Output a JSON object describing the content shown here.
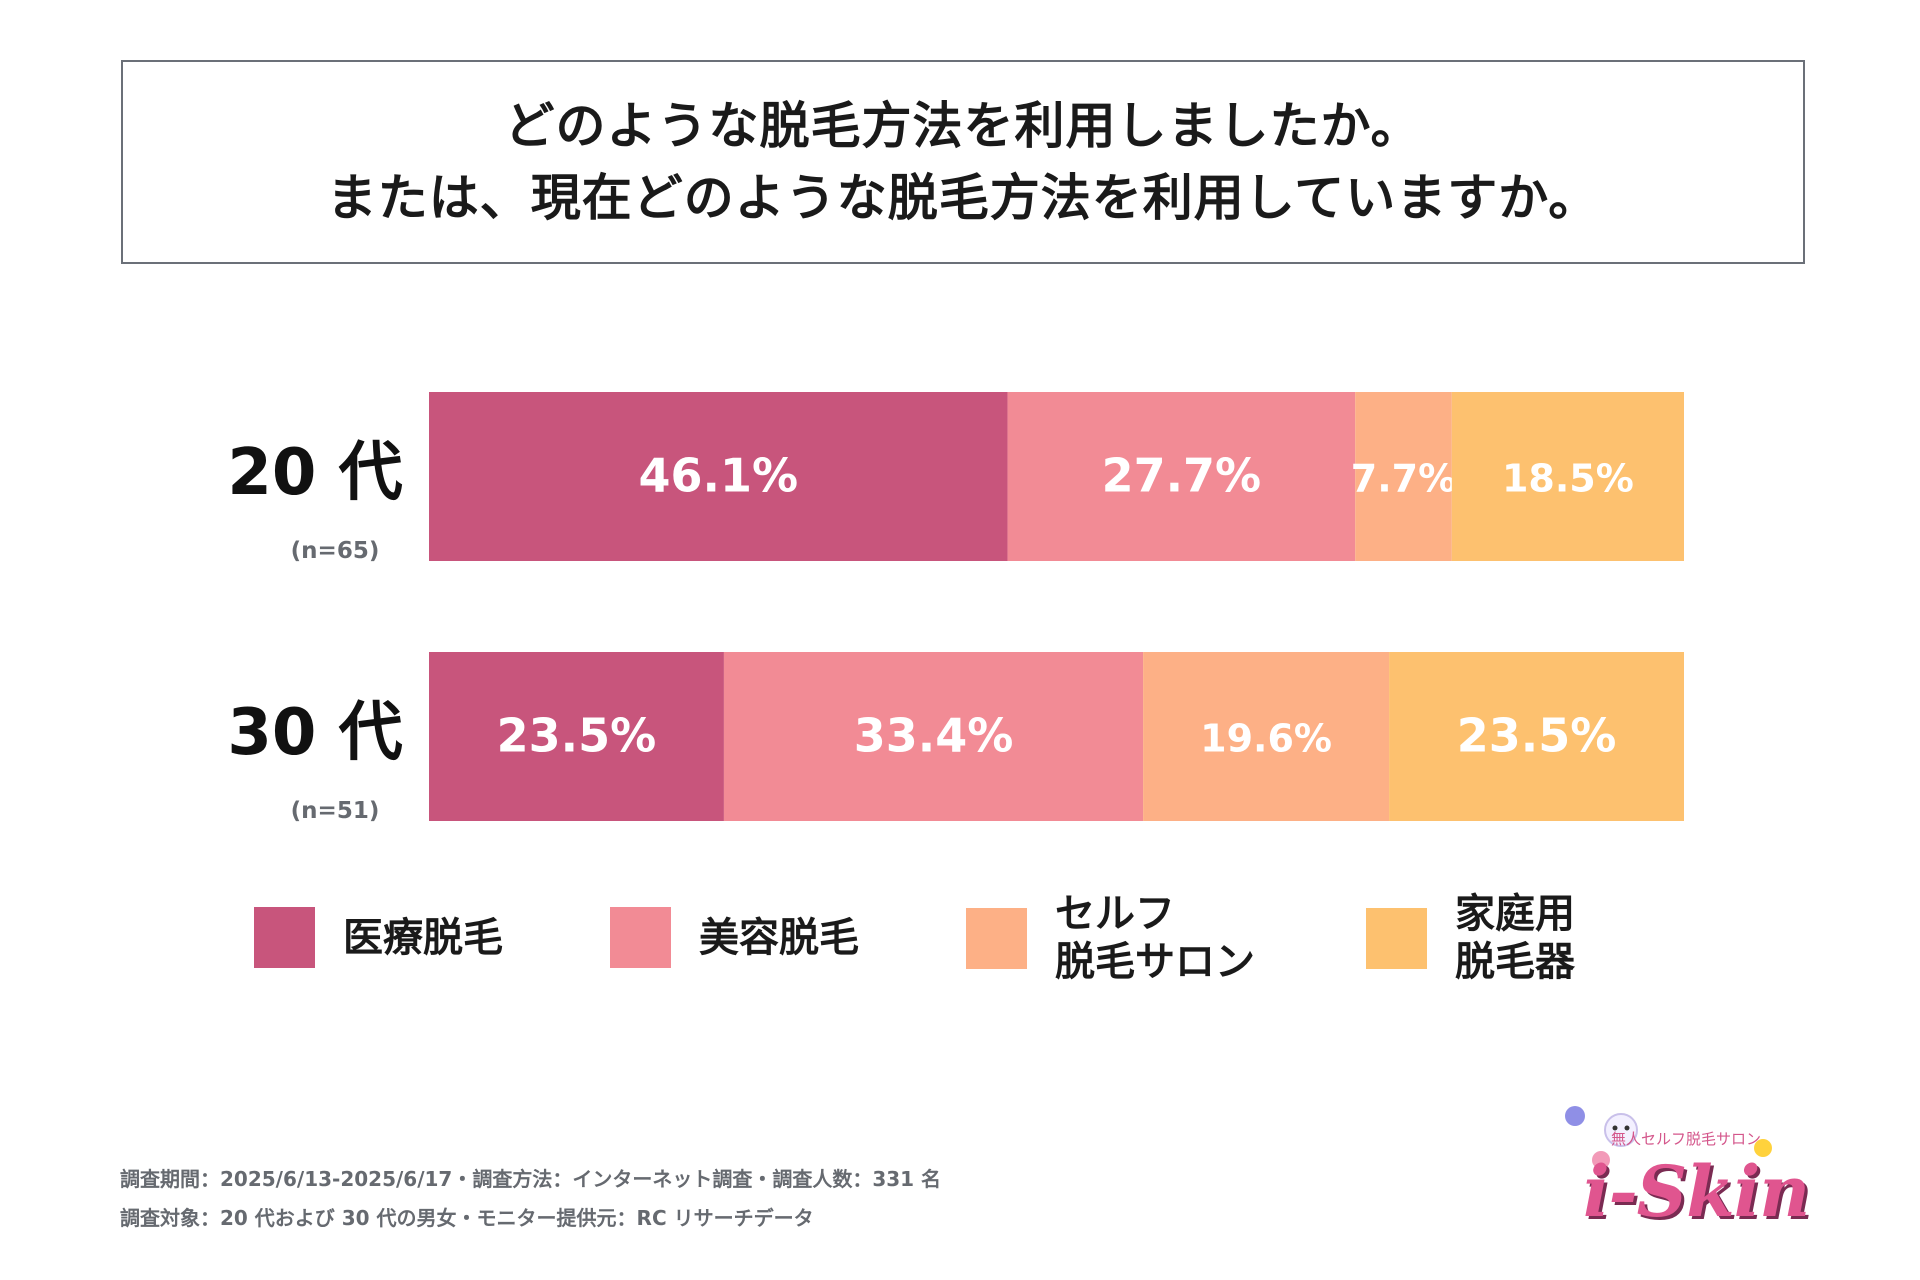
{
  "title": {
    "line1": "どのような脱毛方法を利用しましたか。",
    "line2": "または、現在どのような脱毛方法を利用していますか。"
  },
  "chart_data": {
    "type": "bar",
    "orientation": "horizontal",
    "stacked": true,
    "percent": true,
    "categories": [
      "20代",
      "30代"
    ],
    "category_labels": [
      {
        "name": "20 代",
        "n": "(n=65)"
      },
      {
        "name": "30 代",
        "n": "(n=51)"
      }
    ],
    "series": [
      {
        "name": "医療脱毛",
        "color": "#c8557c",
        "values": [
          46.1,
          23.5
        ],
        "labels": [
          "46.1%",
          "23.5%"
        ]
      },
      {
        "name": "美容脱毛",
        "color": "#f28b95",
        "values": [
          27.7,
          33.4
        ],
        "labels": [
          "27.7%",
          "33.4%"
        ]
      },
      {
        "name": "セルフ脱毛サロン",
        "color": "#fdb086",
        "values": [
          7.7,
          19.6
        ],
        "labels": [
          "7.7%",
          "19.6%"
        ]
      },
      {
        "name": "家庭用脱毛器",
        "color": "#fdc16f",
        "values": [
          18.5,
          23.5
        ],
        "labels": [
          "18.5%",
          "23.5%"
        ]
      }
    ],
    "legend": [
      {
        "label": "医療脱毛",
        "color": "#c8557c"
      },
      {
        "label": "美容脱毛",
        "color": "#f28b95"
      },
      {
        "label": "セルフ\n脱毛サロン",
        "color": "#fdb086"
      },
      {
        "label": "家庭用\n脱毛器",
        "color": "#fdc16f"
      }
    ],
    "legend_position": "bottom",
    "xlim": [
      0,
      100
    ]
  },
  "footnotes": {
    "line1": "調査期間：2025/6/13-2025/6/17・調査方法：インターネット調査・調査人数：331 名",
    "line2": "調査対象：20 代および 30 代の男女・モニター提供元：RC リサーチデータ"
  },
  "logo": {
    "tagline": "無人セルフ脱毛サロン",
    "brand": "i-Skin",
    "color": "#e0558f"
  }
}
